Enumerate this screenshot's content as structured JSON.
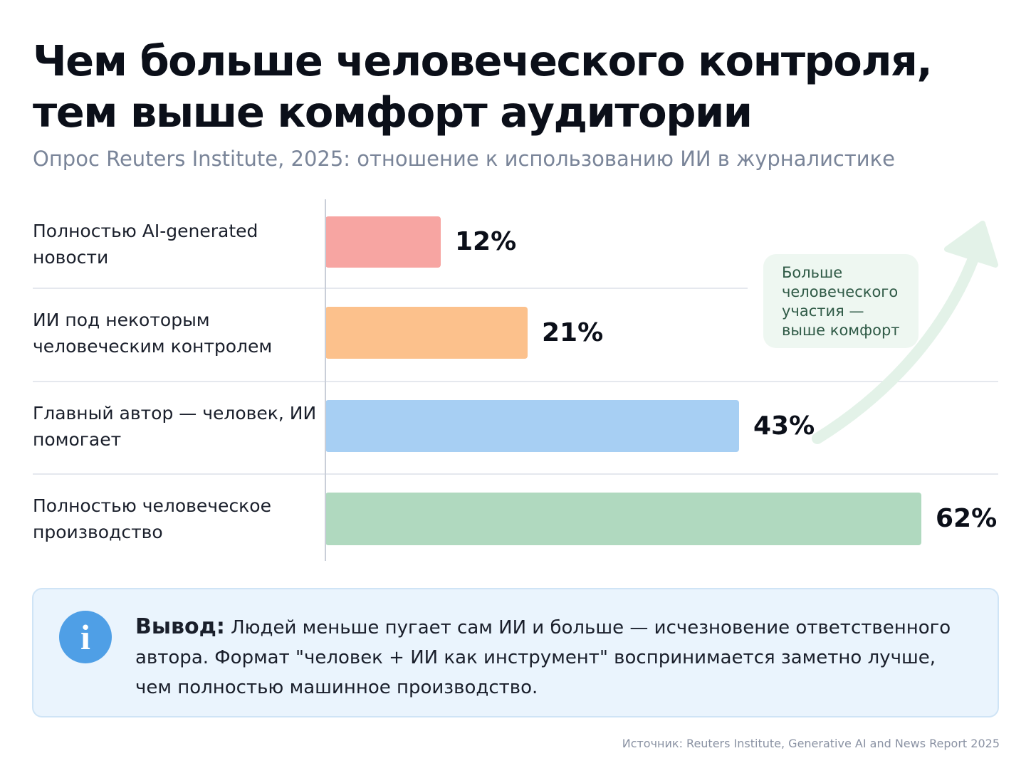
{
  "header": {
    "title": "Чем больше человеческого контроля, тем выше комфорт аудитории",
    "subtitle": "Опрос Reuters Institute, 2025: отношение к использованию ИИ в журналистике"
  },
  "chart_data": {
    "type": "bar",
    "orientation": "horizontal",
    "categories": [
      "Полностью AI-generated новости",
      "ИИ под некоторым человеческим контролем",
      "Главный автор — человек, ИИ помогает",
      "Полностью человеческое производство"
    ],
    "values": [
      12,
      21,
      43,
      62
    ],
    "value_labels": [
      "12%",
      "21%",
      "43%",
      "62%"
    ],
    "colors": [
      "#f7a5a2",
      "#fcc18c",
      "#a7cff3",
      "#b0d9bf"
    ],
    "xlim": [
      0,
      62
    ],
    "grid": false,
    "annotation": "Больше человеческого участия — выше комфорт"
  },
  "info": {
    "label": "Вывод:",
    "text": "Людей меньше пугает сам ИИ и больше — исчезновение ответственного автора. Формат \"человек + ИИ как инструмент\" воспринимается заметно лучше, чем полностью машинное производство."
  },
  "source": "Источник: Reuters Institute, Generative AI and News Report 2025"
}
